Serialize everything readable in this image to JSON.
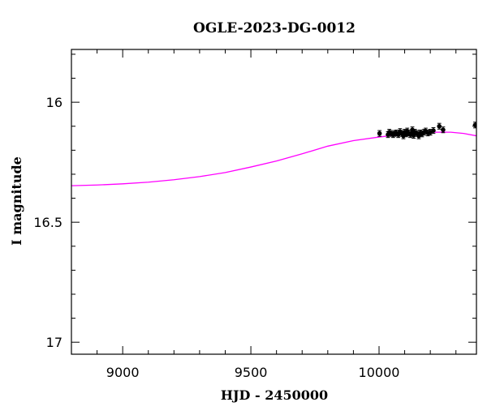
{
  "chart_data": {
    "type": "scatter",
    "title": "OGLE-2023-DG-0012",
    "xlabel": "HJD - 2450000",
    "ylabel": "I magnitude",
    "xlim": [
      8800,
      10380
    ],
    "ylim": [
      17.05,
      15.78
    ],
    "y_inverted": true,
    "grid": false,
    "x_ticks": [
      {
        "value": 9000,
        "label": "9000"
      },
      {
        "value": 9500,
        "label": "9500"
      },
      {
        "value": 10000,
        "label": "10000"
      }
    ],
    "y_ticks": [
      {
        "value": 16,
        "label": "16"
      },
      {
        "value": 16.5,
        "label": "16.5"
      },
      {
        "value": 17,
        "label": "17"
      }
    ],
    "x_minor_step": 100,
    "y_minor_step": 0.1,
    "colors": {
      "points": "#000000",
      "model": "#ff00ff",
      "frame": "#000000"
    },
    "series": [
      {
        "type": "scatter",
        "marker": "circle",
        "points": [
          {
            "x": 10002,
            "y": 16.13,
            "err": 0.012
          },
          {
            "x": 10035,
            "y": 16.135,
            "err": 0.012
          },
          {
            "x": 10040,
            "y": 16.125,
            "err": 0.012
          },
          {
            "x": 10047,
            "y": 16.13,
            "err": 0.012
          },
          {
            "x": 10055,
            "y": 16.135,
            "err": 0.012
          },
          {
            "x": 10060,
            "y": 16.13,
            "err": 0.012
          },
          {
            "x": 10068,
            "y": 16.128,
            "err": 0.012
          },
          {
            "x": 10075,
            "y": 16.135,
            "err": 0.012
          },
          {
            "x": 10082,
            "y": 16.122,
            "err": 0.012
          },
          {
            "x": 10088,
            "y": 16.13,
            "err": 0.012
          },
          {
            "x": 10095,
            "y": 16.14,
            "err": 0.012
          },
          {
            "x": 10100,
            "y": 16.125,
            "err": 0.012
          },
          {
            "x": 10106,
            "y": 16.132,
            "err": 0.012
          },
          {
            "x": 10110,
            "y": 16.12,
            "err": 0.012
          },
          {
            "x": 10115,
            "y": 16.128,
            "err": 0.012
          },
          {
            "x": 10122,
            "y": 16.135,
            "err": 0.012
          },
          {
            "x": 10128,
            "y": 16.13,
            "err": 0.012
          },
          {
            "x": 10130,
            "y": 16.115,
            "err": 0.012
          },
          {
            "x": 10135,
            "y": 16.138,
            "err": 0.012
          },
          {
            "x": 10140,
            "y": 16.125,
            "err": 0.012
          },
          {
            "x": 10148,
            "y": 16.13,
            "err": 0.012
          },
          {
            "x": 10155,
            "y": 16.14,
            "err": 0.012
          },
          {
            "x": 10160,
            "y": 16.128,
            "err": 0.012
          },
          {
            "x": 10168,
            "y": 16.132,
            "err": 0.012
          },
          {
            "x": 10175,
            "y": 16.125,
            "err": 0.012
          },
          {
            "x": 10182,
            "y": 16.12,
            "err": 0.012
          },
          {
            "x": 10190,
            "y": 16.128,
            "err": 0.012
          },
          {
            "x": 10200,
            "y": 16.125,
            "err": 0.012
          },
          {
            "x": 10212,
            "y": 16.118,
            "err": 0.012
          },
          {
            "x": 10235,
            "y": 16.1,
            "err": 0.012
          },
          {
            "x": 10250,
            "y": 16.115,
            "err": 0.012
          },
          {
            "x": 10375,
            "y": 16.095,
            "err": 0.012
          }
        ]
      },
      {
        "type": "line",
        "points": [
          {
            "x": 8800,
            "y": 16.348
          },
          {
            "x": 8900,
            "y": 16.345
          },
          {
            "x": 9000,
            "y": 16.34
          },
          {
            "x": 9100,
            "y": 16.333
          },
          {
            "x": 9200,
            "y": 16.323
          },
          {
            "x": 9300,
            "y": 16.31
          },
          {
            "x": 9400,
            "y": 16.293
          },
          {
            "x": 9500,
            "y": 16.27
          },
          {
            "x": 9600,
            "y": 16.245
          },
          {
            "x": 9700,
            "y": 16.215
          },
          {
            "x": 9800,
            "y": 16.183
          },
          {
            "x": 9900,
            "y": 16.16
          },
          {
            "x": 10000,
            "y": 16.145
          },
          {
            "x": 10100,
            "y": 16.133
          },
          {
            "x": 10200,
            "y": 16.125
          },
          {
            "x": 10280,
            "y": 16.125
          },
          {
            "x": 10330,
            "y": 16.13
          },
          {
            "x": 10380,
            "y": 16.14
          }
        ]
      }
    ]
  }
}
